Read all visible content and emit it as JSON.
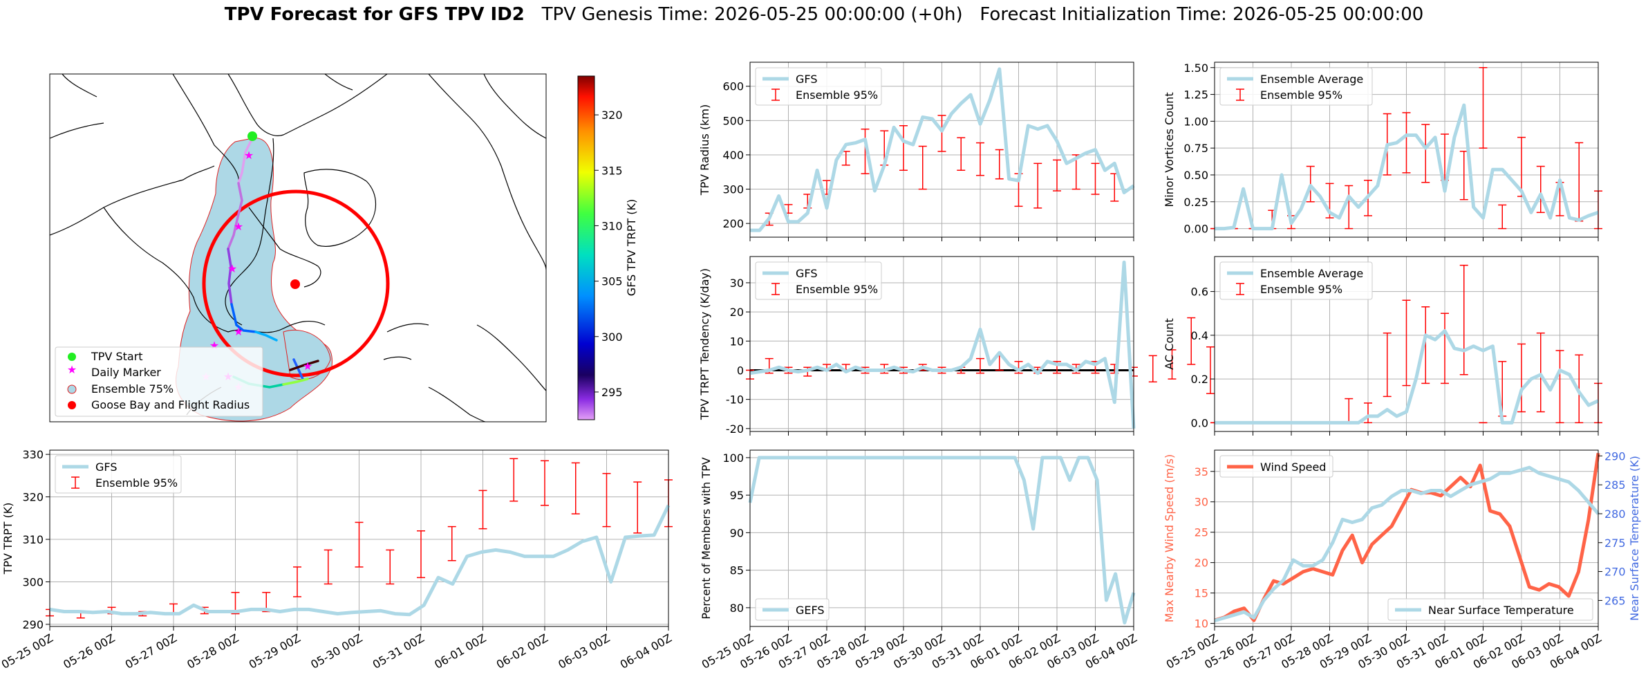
{
  "header": {
    "title_bold": "TPV Forecast for GFS TPV ID2",
    "title_rest": "   TPV Genesis Time: 2026-05-25 00:00:00 (+0h)   Forecast Initialization Time: 2026-05-25 00:00:00"
  },
  "colors": {
    "gfs_line": "#add8e6",
    "error_bar": "#ff0000",
    "wind": "#ff6347",
    "temp_axis": "#4169e1",
    "grid": "#b0b0b0",
    "land": "#add8e6"
  },
  "map": {
    "colorbar_label": "GFS TPV TRPT (K)",
    "colorbar_ticks": [
      295,
      300,
      305,
      310,
      315,
      320
    ],
    "colorbar_range": [
      292.5,
      323.5
    ],
    "legend": [
      "TPV Start",
      "Daily Marker",
      "Ensemble 75%",
      "Goose Bay and Flight Radius"
    ]
  },
  "x_tick_labels": [
    "05-25 00Z",
    "05-26 00Z",
    "05-27 00Z",
    "05-28 00Z",
    "05-29 00Z",
    "05-30 00Z",
    "05-31 00Z",
    "06-01 00Z",
    "06-02 00Z",
    "06-03 00Z",
    "06-04 00Z"
  ],
  "chart_data": [
    {
      "id": "radius",
      "type": "line",
      "ylabel": "TPV Radius (km)",
      "ylim": [
        160,
        670
      ],
      "yticks": [
        200,
        300,
        400,
        500,
        600
      ],
      "legend": [
        "GFS",
        "Ensemble 95%"
      ],
      "series": [
        {
          "name": "GFS",
          "values": [
            180,
            180,
            215,
            280,
            205,
            205,
            230,
            355,
            245,
            385,
            430,
            435,
            445,
            295,
            370,
            480,
            440,
            430,
            510,
            505,
            470,
            520,
            550,
            575,
            490,
            560,
            650,
            330,
            325,
            485,
            475,
            485,
            440,
            375,
            390,
            405,
            415,
            355,
            375,
            290,
            310
          ]
        }
      ],
      "errorbars": [
        {
          "x": 1,
          "lo": 195,
          "hi": 230
        },
        {
          "x": 2,
          "lo": 230,
          "hi": 255
        },
        {
          "x": 3,
          "lo": 245,
          "hi": 285
        },
        {
          "x": 4,
          "lo": 285,
          "hi": 325
        },
        {
          "x": 5,
          "lo": 370,
          "hi": 410
        },
        {
          "x": 6,
          "lo": 345,
          "hi": 475
        },
        {
          "x": 7,
          "lo": 370,
          "hi": 470
        },
        {
          "x": 8,
          "lo": 355,
          "hi": 485
        },
        {
          "x": 9,
          "lo": 300,
          "hi": 425
        },
        {
          "x": 10,
          "lo": 410,
          "hi": 515
        },
        {
          "x": 11,
          "lo": 355,
          "hi": 450
        },
        {
          "x": 12,
          "lo": 340,
          "hi": 435
        },
        {
          "x": 13,
          "lo": 330,
          "hi": 415
        },
        {
          "x": 14,
          "lo": 250,
          "hi": 345
        },
        {
          "x": 15,
          "lo": 245,
          "hi": 375
        },
        {
          "x": 16,
          "lo": 295,
          "hi": 385
        },
        {
          "x": 17,
          "lo": 300,
          "hi": 400
        },
        {
          "x": 18,
          "lo": 285,
          "hi": 375
        },
        {
          "x": 19,
          "lo": 265,
          "hi": 345
        }
      ]
    },
    {
      "id": "minor",
      "type": "line",
      "ylabel": "Minor Vortices Count",
      "ylim": [
        -0.08,
        1.55
      ],
      "yticks": [
        0.0,
        0.25,
        0.5,
        0.75,
        1.0,
        1.25,
        1.5
      ],
      "ytick_decimals": 2,
      "legend": [
        "Ensemble Average",
        "Ensemble 95%"
      ],
      "series": [
        {
          "name": "Ensemble Average",
          "values": [
            0,
            0,
            0.01,
            0.37,
            0,
            0,
            0,
            0.5,
            0.05,
            0.18,
            0.4,
            0.3,
            0.15,
            0.1,
            0.3,
            0.2,
            0.3,
            0.4,
            0.78,
            0.8,
            0.87,
            0.87,
            0.75,
            0.85,
            0.35,
            0.85,
            1.15,
            0.2,
            0.1,
            0.55,
            0.55,
            0.45,
            0.35,
            0.15,
            0.32,
            0.1,
            0.45,
            0.1,
            0.08,
            0.12,
            0.15
          ]
        }
      ],
      "errorbars": [
        {
          "x": 0,
          "lo": 0,
          "hi": 0
        },
        {
          "x": 1,
          "lo": 0,
          "hi": 0
        },
        {
          "x": 2,
          "lo": 0,
          "hi": 0
        },
        {
          "x": 3,
          "lo": 0,
          "hi": 0.17
        },
        {
          "x": 4,
          "lo": 0,
          "hi": 0.12
        },
        {
          "x": 5,
          "lo": 0.25,
          "hi": 0.58
        },
        {
          "x": 6,
          "lo": 0.1,
          "hi": 0.42
        },
        {
          "x": 7,
          "lo": 0,
          "hi": 0.4
        },
        {
          "x": 8,
          "lo": 0.12,
          "hi": 0.45
        },
        {
          "x": 9,
          "lo": 0.5,
          "hi": 1.07
        },
        {
          "x": 10,
          "lo": 0.52,
          "hi": 1.08
        },
        {
          "x": 11,
          "lo": 0.43,
          "hi": 0.97
        },
        {
          "x": 12,
          "lo": 0.45,
          "hi": 0.88
        },
        {
          "x": 13,
          "lo": 0.27,
          "hi": 0.72
        },
        {
          "x": 14,
          "lo": 0.75,
          "hi": 1.5
        },
        {
          "x": 15,
          "lo": 0,
          "hi": 0.22
        },
        {
          "x": 16,
          "lo": 0.3,
          "hi": 0.85
        },
        {
          "x": 17,
          "lo": 0.15,
          "hi": 0.58
        },
        {
          "x": 18,
          "lo": 0.12,
          "hi": 0.43
        },
        {
          "x": 19,
          "lo": 0.07,
          "hi": 0.8
        },
        {
          "x": 20,
          "lo": 0,
          "hi": 0.35
        }
      ]
    },
    {
      "id": "tendency",
      "type": "line",
      "ylabel": "TPV TRPT Tendency (K/day)",
      "ylim": [
        -21,
        39
      ],
      "yticks": [
        -20,
        -10,
        0,
        10,
        20,
        30
      ],
      "zero_line": true,
      "legend": [
        "GFS",
        "Ensemble 95%"
      ],
      "series": [
        {
          "name": "GFS",
          "values": [
            -1,
            -0.5,
            0,
            1,
            0,
            -0.5,
            0,
            1,
            0,
            2,
            -0.5,
            1,
            0,
            0,
            0,
            1,
            0,
            -0.5,
            1,
            0,
            0,
            0,
            1,
            4,
            14,
            2,
            6,
            2,
            0,
            2,
            -1,
            3,
            2,
            2,
            0,
            3,
            2,
            4,
            -11,
            37,
            -20
          ]
        }
      ],
      "errorbars": [
        {
          "x": 0,
          "lo": -3,
          "hi": 0
        },
        {
          "x": 1,
          "lo": -1,
          "hi": 4
        },
        {
          "x": 2,
          "lo": -1,
          "hi": 1
        },
        {
          "x": 3,
          "lo": -2,
          "hi": 1
        },
        {
          "x": 4,
          "lo": 0,
          "hi": 2
        },
        {
          "x": 5,
          "lo": 0,
          "hi": 2
        },
        {
          "x": 6,
          "lo": -1,
          "hi": 1
        },
        {
          "x": 7,
          "lo": -1,
          "hi": 2
        },
        {
          "x": 8,
          "lo": -1,
          "hi": 1
        },
        {
          "x": 9,
          "lo": 0,
          "hi": 2
        },
        {
          "x": 10,
          "lo": -1,
          "hi": 1
        },
        {
          "x": 11,
          "lo": -1,
          "hi": 1
        },
        {
          "x": 12,
          "lo": -1,
          "hi": 4
        },
        {
          "x": 13,
          "lo": 0,
          "hi": 5
        },
        {
          "x": 14,
          "lo": -1,
          "hi": 3
        },
        {
          "x": 15,
          "lo": -1,
          "hi": 1
        },
        {
          "x": 16,
          "lo": -1,
          "hi": 3
        },
        {
          "x": 17,
          "lo": -1,
          "hi": 2
        },
        {
          "x": 18,
          "lo": -1,
          "hi": 3
        },
        {
          "x": 19,
          "lo": -1,
          "hi": 2
        },
        {
          "x": 20,
          "lo": -2,
          "hi": 1
        },
        {
          "x": 21,
          "lo": -4,
          "hi": 5
        },
        {
          "x": 22,
          "lo": -3,
          "hi": 7
        },
        {
          "x": 23,
          "lo": 2,
          "hi": 18
        },
        {
          "x": 24,
          "lo": -8,
          "hi": 8
        }
      ]
    },
    {
      "id": "ac",
      "type": "line",
      "ylabel": "AC Count",
      "ylim": [
        -0.04,
        0.76
      ],
      "yticks": [
        0.0,
        0.2,
        0.4,
        0.6
      ],
      "ytick_decimals": 1,
      "legend": [
        "Ensemble Average",
        "Ensemble 95%"
      ],
      "series": [
        {
          "name": "Ensemble Average",
          "values": [
            0,
            0,
            0,
            0,
            0,
            0,
            0,
            0,
            0,
            0,
            0,
            0,
            0,
            0,
            0,
            0,
            0.03,
            0.03,
            0.06,
            0.03,
            0.05,
            0.2,
            0.4,
            0.38,
            0.42,
            0.34,
            0.33,
            0.35,
            0.33,
            0.35,
            0,
            0,
            0.15,
            0.2,
            0.22,
            0.15,
            0.24,
            0.22,
            0.14,
            0.08,
            0.1
          ]
        }
      ],
      "errorbars": [
        {
          "x": 0,
          "lo": 0,
          "hi": 0
        },
        {
          "x": 1,
          "lo": 0,
          "hi": 0
        },
        {
          "x": 2,
          "lo": 0,
          "hi": 0
        },
        {
          "x": 3,
          "lo": 0,
          "hi": 0
        },
        {
          "x": 4,
          "lo": 0,
          "hi": 0
        },
        {
          "x": 5,
          "lo": 0,
          "hi": 0
        },
        {
          "x": 6,
          "lo": 0,
          "hi": 0
        },
        {
          "x": 7,
          "lo": 0,
          "hi": 0.11
        },
        {
          "x": 8,
          "lo": 0,
          "hi": 0.09
        },
        {
          "x": 9,
          "lo": 0.12,
          "hi": 0.41
        },
        {
          "x": 10,
          "lo": 0.17,
          "hi": 0.56
        },
        {
          "x": 11,
          "lo": 0.18,
          "hi": 0.53
        },
        {
          "x": 12,
          "lo": 0.18,
          "hi": 0.5
        },
        {
          "x": 13,
          "lo": 0.22,
          "hi": 0.72
        },
        {
          "x": 14,
          "lo": 0,
          "hi": 0
        },
        {
          "x": 15,
          "lo": 0.03,
          "hi": 0.28
        },
        {
          "x": 16,
          "lo": 0.05,
          "hi": 0.36
        },
        {
          "x": 17,
          "lo": 0.05,
          "hi": 0.41
        },
        {
          "x": 18,
          "lo": 0,
          "hi": 0.33
        },
        {
          "x": 19,
          "lo": 0,
          "hi": 0.31
        },
        {
          "x": 20,
          "lo": 0,
          "hi": 0.18
        }
      ]
    },
    {
      "id": "trpt",
      "type": "line",
      "ylabel": "TPV TRPT (K)",
      "ylim": [
        289.5,
        331
      ],
      "yticks": [
        290,
        300,
        310,
        320,
        330
      ],
      "legend": [
        "GFS",
        "Ensemble 95%"
      ],
      "series": [
        {
          "name": "GFS",
          "values": [
            293.5,
            293,
            293,
            292.8,
            293,
            292.5,
            292.5,
            292.8,
            292.5,
            292.5,
            294.5,
            293,
            293,
            293,
            293.5,
            293.5,
            293,
            293.5,
            293.5,
            293,
            292.5,
            292.8,
            293,
            293.2,
            292.5,
            292.3,
            294.5,
            301,
            299.5,
            306,
            307,
            307.5,
            307,
            306,
            306,
            306,
            307.5,
            309.5,
            310.5,
            300,
            310.5,
            310.8,
            311,
            318
          ]
        }
      ],
      "errorbars": [
        {
          "x": 0,
          "lo": 292,
          "hi": 293.5
        },
        {
          "x": 1,
          "lo": 291.5,
          "hi": 293
        },
        {
          "x": 2,
          "lo": 292.5,
          "hi": 294
        },
        {
          "x": 3,
          "lo": 292,
          "hi": 293
        },
        {
          "x": 4,
          "lo": 292.5,
          "hi": 294.8
        },
        {
          "x": 5,
          "lo": 292.5,
          "hi": 294
        },
        {
          "x": 6,
          "lo": 292.5,
          "hi": 297.5
        },
        {
          "x": 7,
          "lo": 293,
          "hi": 297.5
        },
        {
          "x": 8,
          "lo": 296.5,
          "hi": 303.5
        },
        {
          "x": 9,
          "lo": 299.5,
          "hi": 307.5
        },
        {
          "x": 10,
          "lo": 303.5,
          "hi": 314
        },
        {
          "x": 11,
          "lo": 299.5,
          "hi": 307.5
        },
        {
          "x": 12,
          "lo": 301,
          "hi": 312
        },
        {
          "x": 13,
          "lo": 305,
          "hi": 313
        },
        {
          "x": 14,
          "lo": 312.5,
          "hi": 321.5
        },
        {
          "x": 15,
          "lo": 319,
          "hi": 329
        },
        {
          "x": 16,
          "lo": 318,
          "hi": 328.5
        },
        {
          "x": 17,
          "lo": 316,
          "hi": 328
        },
        {
          "x": 18,
          "lo": 313,
          "hi": 325.5
        },
        {
          "x": 19,
          "lo": 311.5,
          "hi": 323.5
        },
        {
          "x": 20,
          "lo": 313,
          "hi": 324
        }
      ]
    },
    {
      "id": "percent",
      "type": "line",
      "ylabel": "Percent of Members with TPV",
      "ylim": [
        77.5,
        101
      ],
      "yticks": [
        80,
        85,
        90,
        95,
        100
      ],
      "legend": [
        "GEFS"
      ],
      "series": [
        {
          "name": "GEFS",
          "values": [
            94,
            100,
            100,
            100,
            100,
            100,
            100,
            100,
            100,
            100,
            100,
            100,
            100,
            100,
            100,
            100,
            100,
            100,
            100,
            100,
            100,
            100,
            100,
            100,
            100,
            100,
            100,
            100,
            100,
            100,
            97,
            90.5,
            100,
            100,
            100,
            97,
            100,
            100,
            97,
            81,
            84.5,
            78,
            82
          ]
        }
      ]
    },
    {
      "id": "wind",
      "type": "line",
      "ylabel": "Max Nearby Wind Speed (m/s)",
      "y2label": "Near Surface Temperature (K)",
      "ylim": [
        9.5,
        38.5
      ],
      "yticks": [
        10,
        15,
        20,
        25,
        30,
        35
      ],
      "y2lim": [
        260.5,
        291
      ],
      "y2ticks": [
        265,
        270,
        275,
        280,
        285,
        290
      ],
      "legend": [
        "Wind Speed"
      ],
      "legend2": [
        "Near Surface Temperature"
      ],
      "series": [
        {
          "name": "Wind Speed",
          "axis": "left",
          "values": [
            10.5,
            11,
            12,
            12.5,
            10.5,
            14,
            17,
            16.5,
            17.5,
            18.5,
            19,
            18.5,
            18,
            22,
            24.5,
            20,
            23,
            24.5,
            26,
            29,
            32,
            31.5,
            31.5,
            31,
            32.5,
            34,
            32.5,
            36,
            28.5,
            28,
            26,
            21,
            16,
            15.5,
            16.5,
            16,
            14.5,
            18.5,
            27,
            38
          ]
        },
        {
          "name": "Near Surface Temperature",
          "axis": "right",
          "values": [
            261.5,
            262,
            262.5,
            263,
            262,
            265,
            267,
            268.5,
            272,
            271,
            271,
            272,
            275,
            279,
            278.5,
            279,
            281,
            281.5,
            283,
            284,
            284,
            283.5,
            284,
            284,
            283,
            284,
            285,
            285.5,
            286,
            287,
            287,
            287.5,
            288,
            287,
            286.5,
            286,
            285.5,
            284,
            282,
            280
          ]
        }
      ]
    }
  ]
}
